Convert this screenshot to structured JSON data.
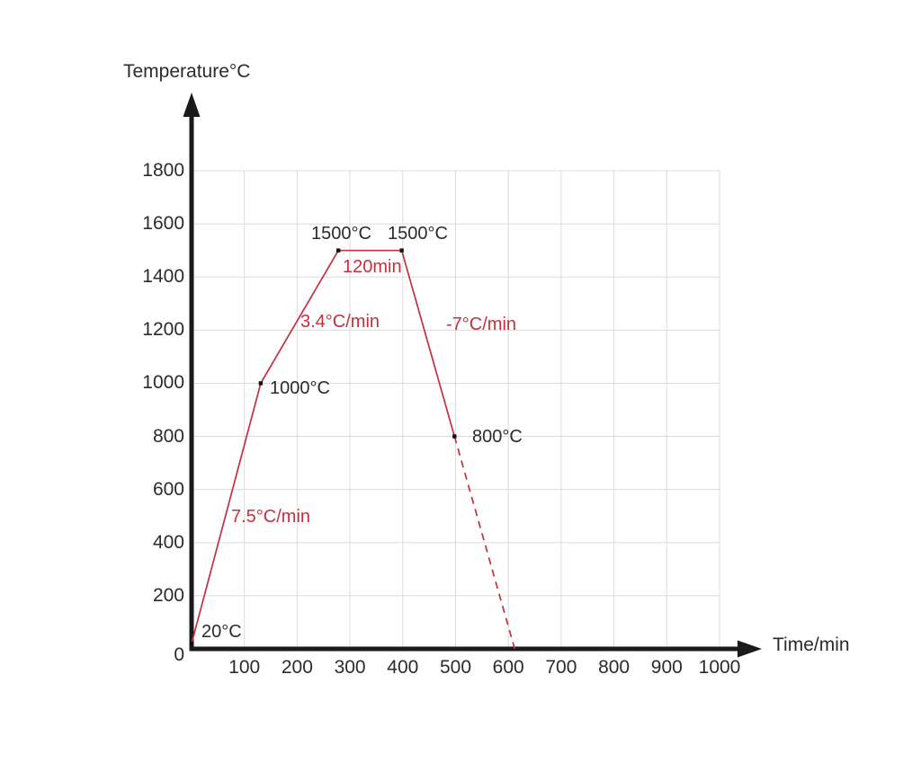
{
  "page": {
    "background": "#ffffff"
  },
  "colors": {
    "line_red": "#c4303e",
    "axis_black": "#1a1a1a",
    "grid_gray": "#dcdcdc",
    "text_black": "#2b2b2b",
    "marker_black": "#111111"
  },
  "chart_data": {
    "type": "line",
    "title": "",
    "ylabel": "Temperature°C",
    "xlabel": "Time/min",
    "xlim": [
      0,
      1070
    ],
    "ylim": [
      0,
      1800
    ],
    "x_ticks": [
      100,
      200,
      300,
      400,
      500,
      600,
      700,
      800,
      900,
      1000
    ],
    "y_ticks": [
      0,
      200,
      400,
      600,
      800,
      1000,
      1200,
      1400,
      1600,
      1800
    ],
    "grid": true,
    "legend": "none",
    "series": [
      {
        "name": "firing-profile-solid",
        "style": "solid",
        "points": [
          [
            0,
            20
          ],
          [
            131,
            1000
          ],
          [
            278,
            1500
          ],
          [
            398,
            1500
          ],
          [
            498,
            800
          ]
        ]
      },
      {
        "name": "firing-profile-projected-dashed",
        "style": "dashed",
        "points": [
          [
            498,
            800
          ],
          [
            612,
            0
          ]
        ]
      }
    ],
    "markers": [
      [
        0,
        20
      ],
      [
        131,
        1000
      ],
      [
        278,
        1500
      ],
      [
        398,
        1500
      ],
      [
        498,
        800
      ]
    ],
    "annotations": [
      {
        "name": "start-temp-label",
        "text": "20°C",
        "color": "black",
        "left": 224,
        "top": 691
      },
      {
        "name": "ramp1-rate-label",
        "text": "7.5°C/min",
        "color": "red",
        "left": 257,
        "top": 563
      },
      {
        "name": "point-1000c-label",
        "text": "1000°C",
        "color": "black",
        "left": 300,
        "top": 420
      },
      {
        "name": "ramp2-rate-label",
        "text": "3.4°C/min",
        "color": "red",
        "left": 334,
        "top": 346
      },
      {
        "name": "plateau-start-label",
        "text": "1500°C",
        "color": "black",
        "left": 346,
        "top": 248
      },
      {
        "name": "plateau-end-label",
        "text": "1500°C",
        "color": "black",
        "left": 431,
        "top": 248
      },
      {
        "name": "hold-duration-label",
        "text": "120min",
        "color": "red",
        "left": 381,
        "top": 285
      },
      {
        "name": "cooling-rate-label",
        "text": "-7°C/min",
        "color": "red",
        "left": 496,
        "top": 349
      },
      {
        "name": "point-800c-label",
        "text": "800°C",
        "color": "black",
        "left": 525,
        "top": 474
      }
    ]
  }
}
